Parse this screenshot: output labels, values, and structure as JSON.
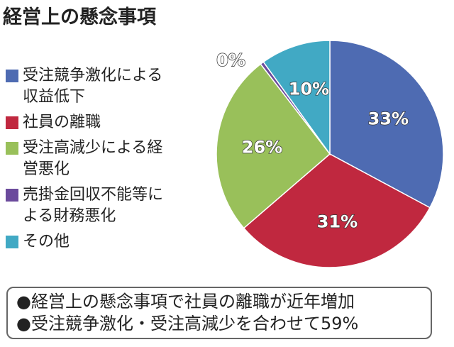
{
  "title": "経営上の懸念事項",
  "chart_data": {
    "type": "pie",
    "title": "経営上の懸念事項",
    "slices": [
      {
        "label": "受注競争激化による\n収益低下",
        "value": 33,
        "display": "33%",
        "color": "#4e6bb2"
      },
      {
        "label": "社員の離職",
        "value": 31,
        "display": "31%",
        "color": "#c0283f"
      },
      {
        "label": "受注高減少による経\n営悪化",
        "value": 26,
        "display": "26%",
        "color": "#99c05a"
      },
      {
        "label": "売掛金回収不能等に\nよる財務悪化",
        "value": 0.5,
        "display": "0%",
        "color": "#6b4a9c"
      },
      {
        "label": "その他",
        "value": 10,
        "display": "10%",
        "color": "#41a9c4"
      }
    ],
    "legend_position": "left"
  },
  "notes": [
    "●経営上の懸念事項で社員の離職が近年増加",
    "●受注競争激化・受注高減少を合わせて59%"
  ]
}
